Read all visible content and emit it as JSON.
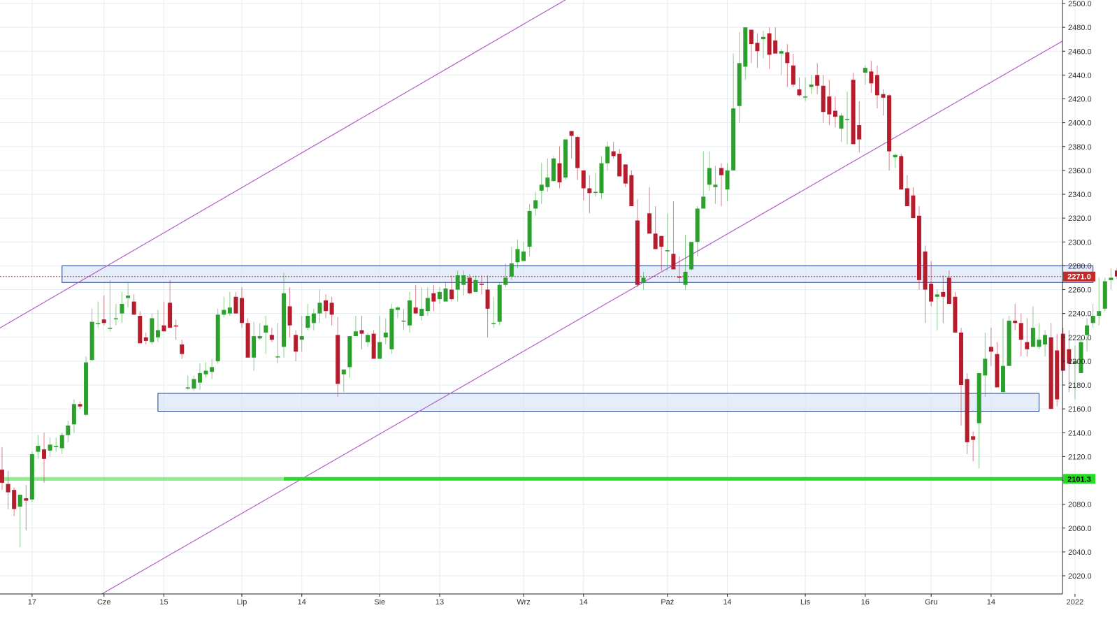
{
  "chart_data": {
    "type": "candlestick",
    "title": "",
    "xlabel": "",
    "ylabel": "",
    "ylim": [
      2002,
      2503
    ],
    "grid": true,
    "colors": {
      "up": "#2ca02c",
      "down": "#b71c2c",
      "trendline": "#b35fc7",
      "zone_fill": "#dbe7f7",
      "zone_stroke": "#1f3c88",
      "support_line": "#22dd22",
      "current_price": "#c62828",
      "grid": "#e3ebf0",
      "axis": "#222222"
    },
    "y_ticks": [
      "2020.0",
      "2040.0",
      "2060.0",
      "2080.0",
      "2100.0",
      "2120.0",
      "2140.0",
      "2160.0",
      "2180.0",
      "2200.0",
      "2220.0",
      "2240.0",
      "2260.0",
      "2280.0",
      "2300.0",
      "2320.0",
      "2340.0",
      "2360.0",
      "2380.0",
      "2400.0",
      "2420.0",
      "2440.0",
      "2460.0",
      "2480.0",
      "2500.0"
    ],
    "x_ticks": [
      {
        "label": "17",
        "index": 5
      },
      {
        "label": "Cze",
        "index": 17
      },
      {
        "label": "15",
        "index": 27
      },
      {
        "label": "Lip",
        "index": 40
      },
      {
        "label": "14",
        "index": 50
      },
      {
        "label": "Sie",
        "index": 63
      },
      {
        "label": "13",
        "index": 73
      },
      {
        "label": "Wrz",
        "index": 87
      },
      {
        "label": "14",
        "index": 97
      },
      {
        "label": "Paź",
        "index": 111
      },
      {
        "label": "14",
        "index": 121
      },
      {
        "label": "Lis",
        "index": 134
      },
      {
        "label": "16",
        "index": 144
      },
      {
        "label": "Gru",
        "index": 155
      },
      {
        "label": "14",
        "index": 165
      },
      {
        "label": "2022",
        "index": 179
      }
    ],
    "candles_ohlc": [
      [
        2109,
        2128,
        2092,
        2098
      ],
      [
        2097,
        2108,
        2076,
        2090
      ],
      [
        2092,
        2094,
        2070,
        2076
      ],
      [
        2078,
        2088,
        2044,
        2088
      ],
      [
        2085,
        2096,
        2058,
        2083
      ],
      [
        2084,
        2124,
        2082,
        2122
      ],
      [
        2124,
        2138,
        2118,
        2129
      ],
      [
        2126,
        2140,
        2098,
        2118
      ],
      [
        2125,
        2136,
        2120,
        2130
      ],
      [
        2128,
        2136,
        2124,
        2129
      ],
      [
        2127,
        2140,
        2122,
        2138
      ],
      [
        2138,
        2150,
        2132,
        2146
      ],
      [
        2147,
        2168,
        2140,
        2164
      ],
      [
        2164,
        2166,
        2160,
        2162
      ],
      [
        2155,
        2204,
        2154,
        2199
      ],
      [
        2201,
        2244,
        2200,
        2233
      ],
      [
        2232,
        2250,
        2228,
        2232
      ],
      [
        2235,
        2255,
        2230,
        2232
      ],
      [
        2228,
        2268,
        2225,
        2228
      ],
      [
        2236,
        2248,
        2230,
        2236
      ],
      [
        2240,
        2258,
        2232,
        2248
      ],
      [
        2253,
        2266,
        2245,
        2255
      ],
      [
        2250,
        2256,
        2240,
        2239
      ],
      [
        2238,
        2242,
        2216,
        2215
      ],
      [
        2220,
        2224,
        2214,
        2217
      ],
      [
        2216,
        2240,
        2214,
        2236
      ],
      [
        2220,
        2243,
        2216,
        2226
      ],
      [
        2230,
        2250,
        2225,
        2225
      ],
      [
        2249,
        2268,
        2228,
        2228
      ],
      [
        2230,
        2235,
        2218,
        2229
      ],
      [
        2214,
        2218,
        2202,
        2206
      ],
      [
        2177,
        2188,
        2176,
        2178
      ],
      [
        2177,
        2188,
        2175,
        2185
      ],
      [
        2182,
        2198,
        2176,
        2190
      ],
      [
        2189,
        2199,
        2186,
        2192
      ],
      [
        2191,
        2202,
        2185,
        2195
      ],
      [
        2200,
        2244,
        2198,
        2239
      ],
      [
        2239,
        2254,
        2237,
        2243
      ],
      [
        2240,
        2258,
        2238,
        2245
      ],
      [
        2254,
        2258,
        2240,
        2240
      ],
      [
        2253,
        2262,
        2228,
        2232
      ],
      [
        2232,
        2236,
        2210,
        2203
      ],
      [
        2203,
        2233,
        2192,
        2221
      ],
      [
        2219,
        2232,
        2218,
        2221
      ],
      [
        2224,
        2238,
        2206,
        2230
      ],
      [
        2222,
        2228,
        2216,
        2218
      ],
      [
        2204,
        2232,
        2198,
        2204
      ],
      [
        2212,
        2274,
        2203,
        2257
      ],
      [
        2246,
        2262,
        2220,
        2230
      ],
      [
        2222,
        2226,
        2200,
        2208
      ],
      [
        2218,
        2238,
        2208,
        2221
      ],
      [
        2228,
        2248,
        2226,
        2238
      ],
      [
        2232,
        2244,
        2226,
        2240
      ],
      [
        2240,
        2260,
        2232,
        2249
      ],
      [
        2251,
        2256,
        2236,
        2242
      ],
      [
        2249,
        2254,
        2230,
        2239
      ],
      [
        2222,
        2237,
        2170,
        2181
      ],
      [
        2189,
        2192,
        2174,
        2193
      ],
      [
        2195,
        2218,
        2186,
        2221
      ],
      [
        2221,
        2238,
        2222,
        2225
      ],
      [
        2226,
        2238,
        2210,
        2223
      ],
      [
        2216,
        2224,
        2212,
        2222
      ],
      [
        2223,
        2226,
        2210,
        2202
      ],
      [
        2202,
        2238,
        2212,
        2216
      ],
      [
        2220,
        2236,
        2214,
        2224
      ],
      [
        2210,
        2248,
        2206,
        2244
      ],
      [
        2243,
        2246,
        2236,
        2245
      ],
      [
        2234,
        2244,
        2226,
        2234
      ],
      [
        2230,
        2258,
        2224,
        2251
      ],
      [
        2245,
        2264,
        2240,
        2240
      ],
      [
        2238,
        2262,
        2234,
        2244
      ],
      [
        2242,
        2262,
        2238,
        2253
      ],
      [
        2257,
        2264,
        2242,
        2250
      ],
      [
        2252,
        2262,
        2248,
        2258
      ],
      [
        2250,
        2266,
        2250,
        2261
      ],
      [
        2260,
        2272,
        2250,
        2252
      ],
      [
        2260,
        2276,
        2250,
        2272
      ],
      [
        2264,
        2276,
        2255,
        2272
      ],
      [
        2270,
        2273,
        2256,
        2257
      ],
      [
        2258,
        2272,
        2258,
        2268
      ],
      [
        2265,
        2272,
        2256,
        2264
      ],
      [
        2260,
        2272,
        2220,
        2244
      ],
      [
        2232,
        2254,
        2228,
        2232
      ],
      [
        2233,
        2266,
        2230,
        2264
      ],
      [
        2264,
        2282,
        2262,
        2270
      ],
      [
        2271,
        2296,
        2268,
        2282
      ],
      [
        2283,
        2302,
        2278,
        2294
      ],
      [
        2284,
        2300,
        2285,
        2292
      ],
      [
        2296,
        2332,
        2288,
        2326
      ],
      [
        2328,
        2342,
        2322,
        2335
      ],
      [
        2343,
        2366,
        2332,
        2348
      ],
      [
        2346,
        2370,
        2342,
        2354
      ],
      [
        2351,
        2372,
        2352,
        2370
      ],
      [
        2366,
        2380,
        2345,
        2350
      ],
      [
        2354,
        2373,
        2352,
        2386
      ],
      [
        2393,
        2392,
        2370,
        2389
      ],
      [
        2388,
        2389,
        2352,
        2362
      ],
      [
        2360,
        2356,
        2335,
        2345
      ],
      [
        2345,
        2356,
        2324,
        2341
      ],
      [
        2342,
        2358,
        2338,
        2342
      ],
      [
        2341,
        2372,
        2336,
        2366
      ],
      [
        2366,
        2384,
        2360,
        2380
      ],
      [
        2376,
        2384,
        2370,
        2372
      ],
      [
        2374,
        2378,
        2360,
        2355
      ],
      [
        2365,
        2364,
        2346,
        2349
      ],
      [
        2356,
        2360,
        2334,
        2330
      ],
      [
        2318,
        2336,
        2262,
        2264
      ],
      [
        2266,
        2275,
        2260,
        2270
      ],
      [
        2324,
        2346,
        2316,
        2307
      ],
      [
        2307,
        2330,
        2296,
        2294
      ],
      [
        2305,
        2302,
        2276,
        2296
      ],
      [
        2293,
        2324,
        2276,
        2293
      ],
      [
        2290,
        2334,
        2300,
        2277
      ],
      [
        2271,
        2288,
        2266,
        2270
      ],
      [
        2264,
        2306,
        2260,
        2275
      ],
      [
        2277,
        2300,
        2276,
        2300
      ],
      [
        2300,
        2330,
        2288,
        2328
      ],
      [
        2328,
        2376,
        2330,
        2338
      ],
      [
        2348,
        2376,
        2343,
        2362
      ],
      [
        2346,
        2364,
        2332,
        2348
      ],
      [
        2362,
        2366,
        2330,
        2356
      ],
      [
        2344,
        2366,
        2334,
        2360
      ],
      [
        2360,
        2458,
        2364,
        2412
      ],
      [
        2414,
        2476,
        2400,
        2450
      ],
      [
        2447,
        2480,
        2436,
        2480
      ],
      [
        2478,
        2462,
        2450,
        2466
      ],
      [
        2467,
        2475,
        2446,
        2460
      ],
      [
        2470,
        2477,
        2454,
        2472
      ],
      [
        2475,
        2480,
        2445,
        2457
      ],
      [
        2469,
        2480,
        2458,
        2458
      ],
      [
        2458,
        2462,
        2440,
        2460
      ],
      [
        2459,
        2466,
        2430,
        2450
      ],
      [
        2448,
        2458,
        2430,
        2432
      ],
      [
        2428,
        2438,
        2422,
        2423
      ],
      [
        2422,
        2438,
        2418,
        2422
      ],
      [
        2430,
        2440,
        2424,
        2432
      ],
      [
        2440,
        2450,
        2424,
        2431
      ],
      [
        2431,
        2440,
        2400,
        2409
      ],
      [
        2422,
        2436,
        2398,
        2407
      ],
      [
        2410,
        2422,
        2396,
        2405
      ],
      [
        2395,
        2408,
        2384,
        2406
      ],
      [
        2403,
        2426,
        2382,
        2403
      ],
      [
        2436,
        2442,
        2382,
        2382
      ],
      [
        2398,
        2418,
        2375,
        2386
      ],
      [
        2442,
        2448,
        2432,
        2446
      ],
      [
        2443,
        2452,
        2425,
        2433
      ],
      [
        2440,
        2448,
        2412,
        2423
      ],
      [
        2424,
        2428,
        2406,
        2421
      ],
      [
        2423,
        2424,
        2360,
        2376
      ],
      [
        2371,
        2374,
        2362,
        2373
      ],
      [
        2372,
        2374,
        2344,
        2344
      ],
      [
        2345,
        2356,
        2330,
        2330
      ],
      [
        2339,
        2346,
        2323,
        2320
      ],
      [
        2322,
        2330,
        2260,
        2268
      ],
      [
        2292,
        2297,
        2232,
        2260
      ],
      [
        2265,
        2284,
        2246,
        2250
      ],
      [
        2254,
        2260,
        2226,
        2256
      ],
      [
        2258,
        2272,
        2232,
        2254
      ],
      [
        2270,
        2276,
        2248,
        2248
      ],
      [
        2254,
        2258,
        2224,
        2224
      ],
      [
        2224,
        2228,
        2146,
        2180
      ],
      [
        2185,
        2190,
        2122,
        2132
      ],
      [
        2137,
        2141,
        2116,
        2134
      ],
      [
        2148,
        2162,
        2110,
        2190
      ],
      [
        2188,
        2224,
        2170,
        2202
      ],
      [
        2212,
        2228,
        2196,
        2208
      ],
      [
        2206,
        2216,
        2178,
        2178
      ],
      [
        2174,
        2236,
        2176,
        2196
      ],
      [
        2196,
        2238,
        2198,
        2234
      ],
      [
        2234,
        2248,
        2226,
        2232
      ],
      [
        2232,
        2240,
        2204,
        2218
      ],
      [
        2216,
        2236,
        2204,
        2210
      ],
      [
        2212,
        2246,
        2214,
        2228
      ],
      [
        2212,
        2232,
        2210,
        2218
      ],
      [
        2214,
        2226,
        2204,
        2222
      ],
      [
        2220,
        2232,
        2160,
        2160
      ],
      [
        2209,
        2223,
        2162,
        2168
      ],
      [
        2223,
        2228,
        2194,
        2192
      ],
      [
        2210,
        2226,
        2174,
        2198
      ],
      [
        2198,
        2213,
        2168,
        2200
      ],
      [
        2190,
        2220,
        2194,
        2216
      ],
      [
        2222,
        2236,
        2208,
        2230
      ],
      [
        2232,
        2248,
        2228,
        2238
      ],
      [
        2238,
        2270,
        2230,
        2242
      ],
      [
        2244,
        2270,
        2242,
        2267
      ],
      [
        2268,
        2278,
        2260,
        2270
      ],
      [
        2276,
        2278,
        2269,
        2271
      ]
    ],
    "zones": [
      {
        "from_index": 10,
        "to_index": 182,
        "y_low": 2266,
        "y_high": 2280
      },
      {
        "from_index": 26,
        "to_index": 173,
        "y_low": 2158,
        "y_high": 2173
      }
    ],
    "trendlines": [
      {
        "x1_index": -1,
        "y1": 2226,
        "x2_index": 95,
        "y2": 2506
      },
      {
        "x1_index": 15,
        "y1": 2000,
        "x2_index": 184,
        "y2": 2489
      }
    ],
    "horizontal_lines": [
      {
        "label": "2101.3",
        "value": 2101.3
      },
      {
        "label": "2271.0",
        "value": 2271.0
      }
    ]
  }
}
